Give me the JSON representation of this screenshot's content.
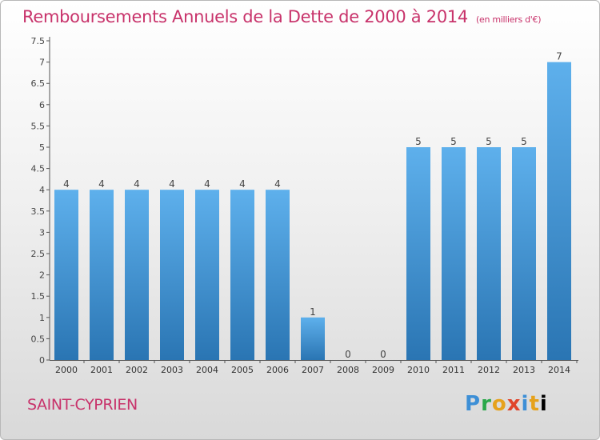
{
  "chart_data": {
    "type": "bar",
    "title": "Remboursements Annuels de la Dette de 2000 à 2014",
    "unit": "(en milliers d'€)",
    "categories": [
      "2000",
      "2001",
      "2002",
      "2003",
      "2004",
      "2005",
      "2006",
      "2007",
      "2008",
      "2009",
      "2010",
      "2011",
      "2012",
      "2013",
      "2014"
    ],
    "values": [
      4,
      4,
      4,
      4,
      4,
      4,
      4,
      1,
      0,
      0,
      5,
      5,
      5,
      5,
      7
    ],
    "ylim": [
      0,
      7.5
    ],
    "yticks": [
      "0",
      "0.5",
      "1",
      "1.5",
      "2",
      "2.5",
      "3",
      "3.5",
      "4",
      "4.5",
      "5",
      "5.5",
      "6",
      "6.5",
      "7",
      "7.5"
    ],
    "grid": false,
    "bar_color_top": "#5eb0ec",
    "bar_color_bottom": "#2a75b3"
  },
  "commune": "SAINT-CYPRIEN",
  "logo": {
    "letters": [
      "P",
      "r",
      "o",
      "x",
      "i",
      "t",
      "i"
    ]
  }
}
